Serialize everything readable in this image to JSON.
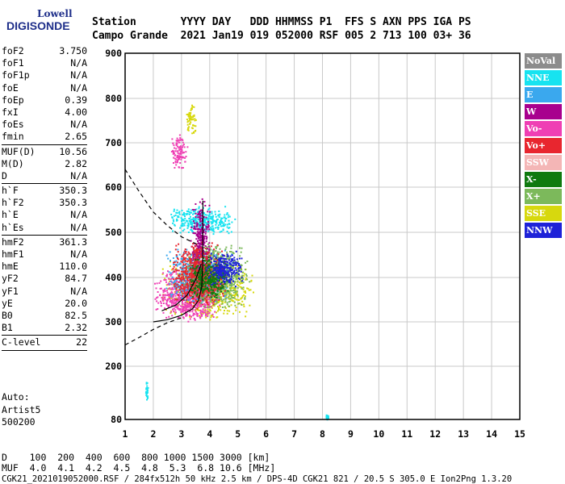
{
  "logo": {
    "top": "Lowell",
    "bottom": "DIGISONDE"
  },
  "header": {
    "line1": "Station       YYYY DAY   DDD HHMMSS P1  FFS S AXN PPS IGA PS",
    "line2": "Campo Grande  2021 Jan19 019 052000 RSF 005 2 713 100 03+ 36"
  },
  "params": [
    {
      "k": "foF2",
      "v": "3.750"
    },
    {
      "k": "foF1",
      "v": "N/A"
    },
    {
      "k": "foF1p",
      "v": "N/A"
    },
    {
      "k": "foE",
      "v": "N/A"
    },
    {
      "k": "foEp",
      "v": "0.39"
    },
    {
      "k": "fxI",
      "v": "4.00"
    },
    {
      "k": "foEs",
      "v": "N/A"
    },
    {
      "k": "fmin",
      "v": "2.65"
    },
    {
      "sep": true
    },
    {
      "k": "MUF(D)",
      "v": "10.56"
    },
    {
      "k": "M(D)",
      "v": "2.82"
    },
    {
      "k": "D",
      "v": "N/A"
    },
    {
      "sep": true
    },
    {
      "k": "h`F",
      "v": "350.3"
    },
    {
      "k": "h`F2",
      "v": "350.3"
    },
    {
      "k": "h`E",
      "v": "N/A"
    },
    {
      "k": "h`Es",
      "v": "N/A"
    },
    {
      "sep": true
    },
    {
      "k": "hmF2",
      "v": "361.3"
    },
    {
      "k": "hmF1",
      "v": "N/A"
    },
    {
      "k": "hmE",
      "v": "110.0"
    },
    {
      "k": "yF2",
      "v": "84.7"
    },
    {
      "k": "yF1",
      "v": "N/A"
    },
    {
      "k": "yE",
      "v": "20.0"
    },
    {
      "k": "B0",
      "v": "82.5"
    },
    {
      "k": "B1",
      "v": "2.32"
    },
    {
      "sep": true
    },
    {
      "k": "C-level",
      "v": "22"
    },
    {
      "sep": true
    }
  ],
  "autoscale": {
    "line1": "Auto:",
    "line2": "Artist5",
    "line3": "500200"
  },
  "bottom": {
    "distance_row": "D    100  200  400  600  800 1000 1500 3000 [km]",
    "muf_row": "MUF  4.0  4.1  4.2  4.5  4.8  5.3  6.8 10.6 [MHz]",
    "footer": "CGK21_2021019052000.RSF / 284fx512h 50 kHz 2.5 km / DPS-4D CGK21 821 / 20.5 S 305.0 E Ion2Png 1.3.20"
  },
  "legend": [
    {
      "label": "NoVal",
      "color": "#8c8c8c"
    },
    {
      "label": "NNE",
      "color": "#17e3f0"
    },
    {
      "label": "E",
      "color": "#3aa8ee"
    },
    {
      "label": "W",
      "color": "#a8008e"
    },
    {
      "label": "Vo-",
      "color": "#ef3fb4"
    },
    {
      "label": "Vo+",
      "color": "#e8262f"
    },
    {
      "label": "SSW",
      "color": "#f4b6b6"
    },
    {
      "label": "X-",
      "color": "#0f7a0f"
    },
    {
      "label": "X+",
      "color": "#7cb95b"
    },
    {
      "label": "SSE",
      "color": "#d7d80e"
    },
    {
      "label": "NNW",
      "color": "#1e22d8"
    }
  ],
  "chart_data": {
    "type": "scatter",
    "x_ticks": [
      "1",
      "2",
      "3",
      "4",
      "5",
      "6",
      "7",
      "8",
      "9",
      "10",
      "11",
      "12",
      "13",
      "14",
      "15"
    ],
    "y_ticks": [
      "80",
      "200",
      "300",
      "400",
      "500",
      "600",
      "700",
      "800",
      "900"
    ],
    "xlim": [
      1,
      15
    ],
    "ylim": [
      80,
      900
    ],
    "y_scale": "nonlinear (ionogram virtual height)",
    "grid": true,
    "legend_position": "right",
    "clusters": [
      {
        "color": "#d7d80e",
        "x": [
          2.2,
          5.6
        ],
        "y": [
          305,
          440
        ]
      },
      {
        "color": "#ef3fb4",
        "x": [
          2.0,
          4.4
        ],
        "y": [
          300,
          420
        ]
      },
      {
        "color": "#3aa8ee",
        "x": [
          2.4,
          4.8
        ],
        "y": [
          340,
          470
        ]
      },
      {
        "color": "#17e3f0",
        "x": [
          2.5,
          4.9
        ],
        "y": [
          495,
          560
        ]
      },
      {
        "color": "#7cb95b",
        "x": [
          3.0,
          5.4
        ],
        "y": [
          330,
          480
        ]
      },
      {
        "color": "#a8008e",
        "x": [
          3.3,
          4.0
        ],
        "y": [
          350,
          580
        ]
      },
      {
        "color": "#e8262f",
        "x": [
          2.6,
          4.6
        ],
        "y": [
          330,
          480
        ]
      },
      {
        "color": "#0f7a0f",
        "x": [
          3.2,
          4.7
        ],
        "y": [
          350,
          450
        ]
      },
      {
        "color": "#1e22d8",
        "x": [
          3.8,
          5.2
        ],
        "y": [
          380,
          460
        ]
      },
      {
        "color": "#ef3fb4",
        "x": [
          2.6,
          3.2
        ],
        "y": [
          640,
          720
        ]
      },
      {
        "color": "#d7d80e",
        "x": [
          3.1,
          3.5
        ],
        "y": [
          720,
          790
        ]
      },
      {
        "color": "#17e3f0",
        "x": [
          1.7,
          1.8
        ],
        "y": [
          120,
          170
        ]
      },
      {
        "color": "#17e3f0",
        "x": [
          8.1,
          8.2
        ],
        "y": [
          80,
          92
        ]
      }
    ],
    "curves": [
      {
        "style": "dashed",
        "points": [
          [
            1,
            640
          ],
          [
            1.5,
            590
          ],
          [
            2.0,
            545
          ],
          [
            2.5,
            515
          ],
          [
            3.0,
            490
          ],
          [
            3.4,
            478
          ],
          [
            3.6,
            472
          ]
        ]
      },
      {
        "style": "dashed",
        "points": [
          [
            1,
            248
          ],
          [
            1.5,
            265
          ],
          [
            2.0,
            283
          ],
          [
            2.5,
            298
          ],
          [
            2.9,
            307
          ],
          [
            3.1,
            310
          ]
        ]
      },
      {
        "style": "solid",
        "points": [
          [
            2.0,
            300
          ],
          [
            2.5,
            305
          ],
          [
            3.0,
            315
          ],
          [
            3.4,
            330
          ],
          [
            3.6,
            348
          ],
          [
            3.72,
            380
          ],
          [
            3.75,
            430
          ],
          [
            3.76,
            520
          ],
          [
            3.76,
            570
          ]
        ]
      },
      {
        "style": "solid",
        "points": [
          [
            2.3,
            325
          ],
          [
            2.8,
            338
          ],
          [
            3.2,
            360
          ],
          [
            3.5,
            395
          ],
          [
            3.7,
            430
          ]
        ]
      }
    ]
  }
}
